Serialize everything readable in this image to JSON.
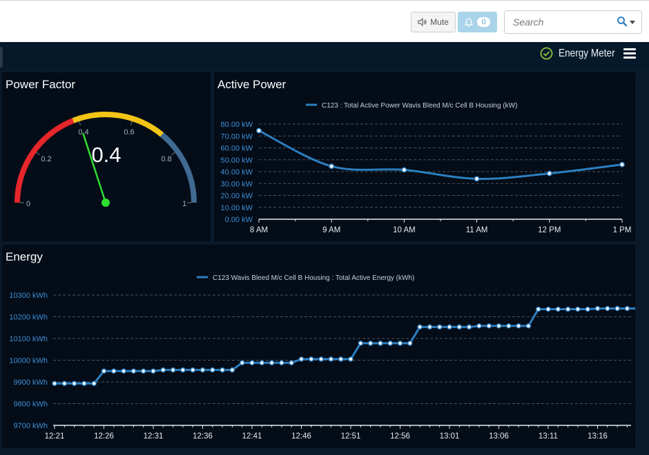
{
  "toolbar": {
    "mute_label": "Mute",
    "notification_count": "0",
    "search_placeholder": "Search"
  },
  "header": {
    "title": "Energy Meter"
  },
  "colors": {
    "accent_blue": "#2d7fc1",
    "status_green": "#8fc43c",
    "gauge_red": "#e5262b",
    "gauge_yellow": "#f2c416",
    "gauge_slate": "#3f6a92",
    "needle_green": "#2ee02e"
  },
  "power_factor": {
    "title": "Power Factor",
    "value": "0.4",
    "value_num": 0.4,
    "min": 0,
    "max": 1,
    "ticks": [
      "0",
      "0.2",
      "0.4",
      "0.6",
      "0.8",
      "1"
    ]
  },
  "active_power": {
    "title": "Active Power",
    "chart_data": {
      "type": "line",
      "legend": "C123 : Total Active Power Wavis Bleed M/c Cell B Housing (kW)",
      "x": [
        "8 AM",
        "9 AM",
        "10 AM",
        "11 AM",
        "12 PM",
        "1 PM"
      ],
      "values": [
        74.5,
        44.5,
        41.5,
        34,
        38.5,
        46
      ],
      "ylim": [
        0,
        80
      ],
      "yticks": [
        "0.00 kW",
        "10.00 kW",
        "20.00 kW",
        "30.00 kW",
        "40.00 kW",
        "50.00 kW",
        "60.00 kW",
        "70.00 kW",
        "80.00 kW"
      ],
      "grid": true
    }
  },
  "energy": {
    "title": "Energy",
    "chart_data": {
      "type": "line",
      "legend": "C123 Wavis Bleed M/c Cell B Housing : Total Active Energy (kWh)",
      "x_ticks": [
        "12:21",
        "12:26",
        "12:31",
        "12:36",
        "12:41",
        "12:46",
        "12:51",
        "12:56",
        "13:01",
        "13:06",
        "13:11",
        "13:16"
      ],
      "x_start": "12:21",
      "x_step_minutes": 1,
      "values": [
        9893,
        9893,
        9893,
        9893,
        9893,
        9950,
        9950,
        9950,
        9950,
        9950,
        9950,
        9955,
        9955,
        9955,
        9955,
        9955,
        9955,
        9955,
        9955,
        9988,
        9988,
        9988,
        9988,
        9988,
        9988,
        10005,
        10005,
        10005,
        10005,
        10005,
        10005,
        10078,
        10078,
        10078,
        10078,
        10078,
        10078,
        10153,
        10153,
        10153,
        10153,
        10153,
        10153,
        10158,
        10158,
        10158,
        10158,
        10158,
        10158,
        10235,
        10235,
        10235,
        10235,
        10235,
        10235,
        10238,
        10238,
        10238,
        10238,
        10238
      ],
      "ylim": [
        9700,
        10300
      ],
      "yticks": [
        "9700 kWh",
        "9800 kWh",
        "9900 kWh",
        "10000 kWh",
        "10100 kWh",
        "10200 kWh",
        "10300 kWh"
      ],
      "grid": true
    }
  }
}
